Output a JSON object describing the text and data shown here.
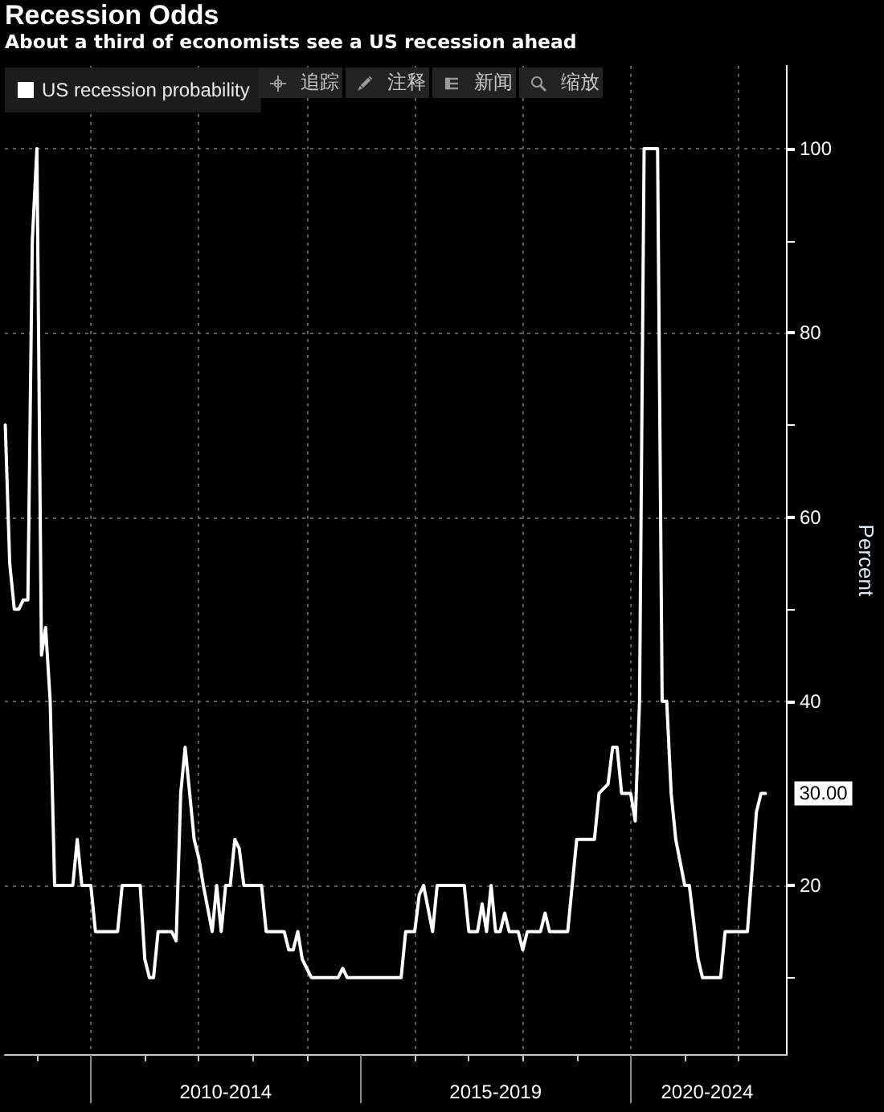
{
  "chart_data": {
    "type": "line",
    "title": "Recession Odds",
    "subtitle": "About a third of economists see a US recession ahead",
    "ylabel": "Percent",
    "annotations": [
      "追踪",
      "注释",
      "新闻",
      "缩放"
    ],
    "x": [
      "2008-06",
      "2008-07",
      "2008-08",
      "2008-09",
      "2008-10",
      "2008-11",
      "2008-12",
      "2009-01",
      "2009-02",
      "2009-03",
      "2009-04",
      "2009-05",
      "2009-09",
      "2009-10",
      "2009-11",
      "2010-01",
      "2010-02",
      "2010-07",
      "2010-08",
      "2010-12",
      "2011-01",
      "2011-02",
      "2011-03",
      "2011-04",
      "2011-07",
      "2011-08",
      "2011-09",
      "2011-10",
      "2011-12",
      "2012-01",
      "2012-02",
      "2012-04",
      "2012-05",
      "2012-06",
      "2012-07",
      "2012-08",
      "2012-09",
      "2012-10",
      "2012-11",
      "2013-03",
      "2013-04",
      "2013-08",
      "2013-09",
      "2013-10",
      "2013-11",
      "2013-12",
      "2014-01",
      "2014-02",
      "2014-08",
      "2014-09",
      "2014-10",
      "2015-10",
      "2015-11",
      "2016-01",
      "2016-02",
      "2016-03",
      "2016-05",
      "2016-06",
      "2016-12",
      "2017-01",
      "2017-03",
      "2017-04",
      "2017-05",
      "2017-06",
      "2017-07",
      "2017-08",
      "2017-09",
      "2017-10",
      "2017-12",
      "2018-01",
      "2018-02",
      "2018-05",
      "2018-06",
      "2018-07",
      "2018-11",
      "2019-01",
      "2019-05",
      "2019-06",
      "2019-08",
      "2019-09",
      "2019-10",
      "2019-11",
      "2020-01",
      "2020-02",
      "2020-03",
      "2020-04",
      "2020-07",
      "2020-08",
      "2020-09",
      "2020-10",
      "2020-11",
      "2021-01",
      "2021-02",
      "2021-04",
      "2021-05",
      "2021-09",
      "2021-10",
      "2022-03",
      "2022-05",
      "2022-06",
      "2022-07"
    ],
    "series": [
      {
        "name": "US recession probability",
        "color": "#ffffff",
        "values": [
          70,
          55,
          50,
          50,
          51,
          51,
          90,
          100,
          45,
          48,
          40,
          20,
          20,
          25,
          20,
          20,
          15,
          15,
          20,
          20,
          12,
          10,
          10,
          15,
          15,
          14,
          30,
          35,
          25,
          23,
          20,
          15,
          20,
          15,
          20,
          20,
          25,
          24,
          20,
          20,
          15,
          15,
          13,
          13,
          15,
          12,
          11,
          10,
          10,
          11,
          10,
          10,
          15,
          15,
          19,
          20,
          15,
          20,
          20,
          15,
          15,
          18,
          15,
          20,
          15,
          15,
          17,
          15,
          15,
          13,
          15,
          15,
          17,
          15,
          15,
          25,
          25,
          30,
          31,
          35,
          35,
          30,
          30,
          27,
          40,
          100,
          100,
          40,
          40,
          30,
          25,
          20,
          20,
          12,
          10,
          10,
          15,
          15,
          28,
          30,
          30
        ],
        "value_labels": [
          null,
          null,
          null,
          null,
          null,
          null,
          null,
          null,
          null,
          null,
          null,
          null,
          null,
          null,
          null,
          null,
          null,
          null,
          null,
          null,
          null,
          null,
          null,
          null,
          null,
          null,
          null,
          null,
          null,
          null,
          null,
          null,
          null,
          null,
          null,
          null,
          null,
          null,
          null,
          null,
          null,
          null,
          null,
          null,
          null,
          null,
          null,
          null,
          null,
          null,
          null,
          null,
          null,
          null,
          null,
          null,
          null,
          null,
          null,
          null,
          null,
          null,
          null,
          null,
          null,
          null,
          null,
          null,
          null,
          null,
          null,
          null,
          null,
          null,
          null,
          null,
          null,
          null,
          null,
          null,
          null,
          null,
          null,
          null,
          null,
          null,
          null,
          null,
          null,
          null,
          null,
          null,
          null,
          null,
          null,
          null,
          null,
          null,
          null,
          null,
          "30.00"
        ]
      }
    ],
    "xlim": [
      "2008-05-29",
      "2022-11-22"
    ],
    "xticks": [
      {
        "value": "2009",
        "label": null
      },
      {
        "value": "2010",
        "label": null
      },
      {
        "value": "2011",
        "label": null
      },
      {
        "value": "2012",
        "label": null
      },
      {
        "value": "2012-07",
        "label": "2010-2014"
      },
      {
        "value": "2013",
        "label": null
      },
      {
        "value": "2014",
        "label": null
      },
      {
        "value": "2015",
        "label": null
      },
      {
        "value": "2016",
        "label": null
      },
      {
        "value": "2017",
        "label": null
      },
      {
        "value": "2017-07",
        "label": "2015-2019"
      },
      {
        "value": "2018",
        "label": null
      },
      {
        "value": "2019",
        "label": null
      },
      {
        "value": "2020",
        "label": null
      },
      {
        "value": "2021",
        "label": null
      },
      {
        "value": "2021-06",
        "label": "2020-2024"
      },
      {
        "value": "2022",
        "label": null
      }
    ],
    "ylim": [
      1.6,
      109
    ],
    "yticks": [
      {
        "value": 10,
        "label": null
      },
      20,
      40,
      {
        "value": 50,
        "label": null
      },
      60,
      {
        "value": 70,
        "label": null
      },
      80,
      {
        "value": 90,
        "label": null
      },
      100
    ],
    "grid": true,
    "legend": "top left",
    "marker": "none",
    "line_style": "solid"
  }
}
